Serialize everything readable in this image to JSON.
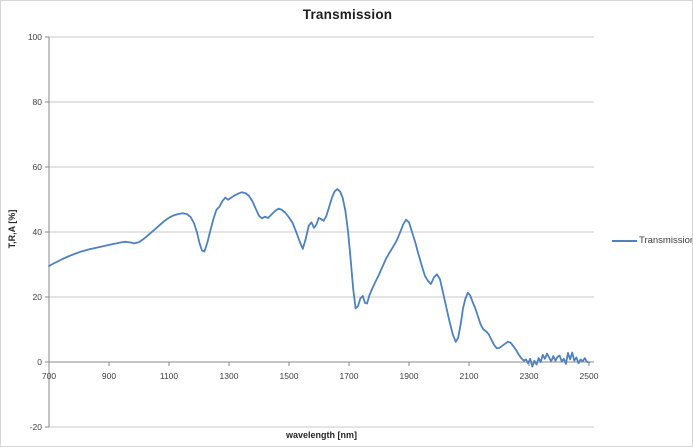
{
  "title": "Transmission",
  "legend": {
    "label": "Transmission",
    "line_color": "#4f81bd"
  },
  "colors": {
    "series": "#4f81bd",
    "gridline": "#c9c9c9",
    "axis": "#8a8a8a",
    "tick_text": "#3f3f3f",
    "title_text": "#1f1f1f",
    "background": "#ffffff",
    "chart_border": "#d6d6d6"
  },
  "chart_data": {
    "type": "line",
    "title": "Transmission",
    "xlabel": "wavelength [nm]",
    "ylabel": "T,R,A [%]",
    "xlim": [
      700,
      2500
    ],
    "ylim": [
      -20,
      100
    ],
    "x_ticks": [
      700,
      900,
      1100,
      1300,
      1500,
      1700,
      1900,
      2100,
      2300,
      2500
    ],
    "y_ticks": [
      -20,
      0,
      20,
      40,
      60,
      80,
      100
    ],
    "grid": "horizontal-only",
    "legend_position": "right",
    "series": [
      {
        "name": "Transmission",
        "color": "#4f81bd",
        "points": [
          [
            700,
            29.5
          ],
          [
            715,
            30.3
          ],
          [
            730,
            31.0
          ],
          [
            745,
            31.7
          ],
          [
            760,
            32.3
          ],
          [
            775,
            32.9
          ],
          [
            790,
            33.4
          ],
          [
            805,
            33.9
          ],
          [
            820,
            34.3
          ],
          [
            835,
            34.7
          ],
          [
            850,
            35.0
          ],
          [
            865,
            35.3
          ],
          [
            880,
            35.6
          ],
          [
            895,
            35.9
          ],
          [
            910,
            36.2
          ],
          [
            925,
            36.5
          ],
          [
            940,
            36.8
          ],
          [
            955,
            37.0
          ],
          [
            970,
            36.8
          ],
          [
            985,
            36.5
          ],
          [
            1000,
            36.9
          ],
          [
            1012,
            37.6
          ],
          [
            1025,
            38.6
          ],
          [
            1040,
            39.8
          ],
          [
            1055,
            41.0
          ],
          [
            1070,
            42.2
          ],
          [
            1085,
            43.4
          ],
          [
            1100,
            44.4
          ],
          [
            1115,
            45.1
          ],
          [
            1130,
            45.5
          ],
          [
            1145,
            45.8
          ],
          [
            1160,
            45.5
          ],
          [
            1172,
            44.6
          ],
          [
            1183,
            42.8
          ],
          [
            1193,
            40.0
          ],
          [
            1202,
            36.5
          ],
          [
            1210,
            34.3
          ],
          [
            1218,
            34.0
          ],
          [
            1228,
            36.8
          ],
          [
            1238,
            40.5
          ],
          [
            1248,
            44.0
          ],
          [
            1258,
            46.8
          ],
          [
            1268,
            47.8
          ],
          [
            1278,
            49.5
          ],
          [
            1288,
            50.6
          ],
          [
            1297,
            49.9
          ],
          [
            1307,
            50.6
          ],
          [
            1318,
            51.2
          ],
          [
            1330,
            51.8
          ],
          [
            1342,
            52.2
          ],
          [
            1354,
            52.0
          ],
          [
            1366,
            51.2
          ],
          [
            1378,
            49.5
          ],
          [
            1390,
            47.0
          ],
          [
            1400,
            45.0
          ],
          [
            1410,
            44.2
          ],
          [
            1420,
            44.7
          ],
          [
            1430,
            44.3
          ],
          [
            1442,
            45.4
          ],
          [
            1455,
            46.6
          ],
          [
            1465,
            47.2
          ],
          [
            1475,
            46.9
          ],
          [
            1487,
            46.0
          ],
          [
            1500,
            44.5
          ],
          [
            1512,
            42.8
          ],
          [
            1524,
            40.0
          ],
          [
            1536,
            37.0
          ],
          [
            1546,
            34.8
          ],
          [
            1556,
            38.0
          ],
          [
            1566,
            42.0
          ],
          [
            1575,
            43.0
          ],
          [
            1583,
            41.3
          ],
          [
            1591,
            42.2
          ],
          [
            1599,
            44.3
          ],
          [
            1607,
            44.0
          ],
          [
            1615,
            43.4
          ],
          [
            1624,
            44.8
          ],
          [
            1633,
            47.5
          ],
          [
            1643,
            50.5
          ],
          [
            1652,
            52.5
          ],
          [
            1661,
            53.2
          ],
          [
            1670,
            52.5
          ],
          [
            1679,
            50.5
          ],
          [
            1688,
            46.5
          ],
          [
            1697,
            40.0
          ],
          [
            1706,
            31.0
          ],
          [
            1714,
            22.5
          ],
          [
            1722,
            16.5
          ],
          [
            1730,
            17.2
          ],
          [
            1738,
            19.6
          ],
          [
            1746,
            20.3
          ],
          [
            1753,
            18.2
          ],
          [
            1760,
            18.0
          ],
          [
            1768,
            20.5
          ],
          [
            1777,
            22.5
          ],
          [
            1787,
            24.5
          ],
          [
            1798,
            26.5
          ],
          [
            1810,
            29.0
          ],
          [
            1822,
            31.5
          ],
          [
            1834,
            33.5
          ],
          [
            1846,
            35.3
          ],
          [
            1858,
            37.2
          ],
          [
            1870,
            39.8
          ],
          [
            1880,
            42.2
          ],
          [
            1890,
            43.8
          ],
          [
            1900,
            43.0
          ],
          [
            1910,
            40.0
          ],
          [
            1921,
            36.8
          ],
          [
            1932,
            33.0
          ],
          [
            1943,
            29.5
          ],
          [
            1953,
            26.5
          ],
          [
            1963,
            25.0
          ],
          [
            1973,
            24.0
          ],
          [
            1983,
            26.0
          ],
          [
            1993,
            27.0
          ],
          [
            2003,
            25.5
          ],
          [
            2013,
            21.5
          ],
          [
            2024,
            17.0
          ],
          [
            2035,
            12.5
          ],
          [
            2046,
            8.5
          ],
          [
            2056,
            6.2
          ],
          [
            2064,
            7.5
          ],
          [
            2072,
            11.5
          ],
          [
            2080,
            16.5
          ],
          [
            2088,
            19.5
          ],
          [
            2096,
            21.3
          ],
          [
            2104,
            20.5
          ],
          [
            2112,
            18.5
          ],
          [
            2121,
            16.5
          ],
          [
            2130,
            14.0
          ],
          [
            2139,
            11.5
          ],
          [
            2148,
            10.0
          ],
          [
            2157,
            9.4
          ],
          [
            2166,
            8.5
          ],
          [
            2175,
            6.8
          ],
          [
            2184,
            5.2
          ],
          [
            2193,
            4.2
          ],
          [
            2202,
            4.4
          ],
          [
            2211,
            5.0
          ],
          [
            2220,
            5.6
          ],
          [
            2229,
            6.2
          ],
          [
            2238,
            6.0
          ],
          [
            2247,
            5.0
          ],
          [
            2256,
            3.8
          ],
          [
            2265,
            2.4
          ],
          [
            2274,
            1.2
          ],
          [
            2283,
            0.4
          ],
          [
            2290,
            0.8
          ],
          [
            2297,
            -0.4
          ],
          [
            2304,
            1.0
          ],
          [
            2311,
            -1.4
          ],
          [
            2318,
            0.4
          ],
          [
            2325,
            -0.8
          ],
          [
            2332,
            1.2
          ],
          [
            2339,
            0.0
          ],
          [
            2346,
            2.2
          ],
          [
            2353,
            1.0
          ],
          [
            2360,
            2.6
          ],
          [
            2367,
            1.4
          ],
          [
            2374,
            0.2
          ],
          [
            2381,
            1.8
          ],
          [
            2388,
            0.4
          ],
          [
            2395,
            1.6
          ],
          [
            2402,
            2.0
          ],
          [
            2409,
            0.2
          ],
          [
            2416,
            1.0
          ],
          [
            2423,
            -0.6
          ],
          [
            2430,
            2.8
          ],
          [
            2437,
            0.8
          ],
          [
            2444,
            2.9
          ],
          [
            2451,
            0.4
          ],
          [
            2458,
            1.4
          ],
          [
            2465,
            -0.4
          ],
          [
            2472,
            0.8
          ],
          [
            2479,
            0.2
          ],
          [
            2486,
            1.2
          ],
          [
            2493,
            0.1
          ],
          [
            2500,
            -0.2
          ]
        ]
      }
    ]
  }
}
